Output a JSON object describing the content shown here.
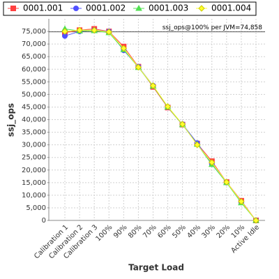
{
  "chart_data": {
    "type": "line",
    "x_label": "Target Load",
    "y_label": "ssj_ops",
    "categories": [
      "Calibration 1",
      "Calibration 2",
      "Calibration 3",
      "100%",
      "90%",
      "80%",
      "70%",
      "60%",
      "50%",
      "40%",
      "30%",
      "20%",
      "10%",
      "Active Idle"
    ],
    "series": [
      {
        "name": "0001.001",
        "color": "#ff4040",
        "marker": "square",
        "values": [
          74500,
          75500,
          76000,
          75000,
          69000,
          61000,
          53000,
          44800,
          38000,
          30500,
          23500,
          15200,
          7800,
          0
        ]
      },
      {
        "name": "0001.002",
        "color": "#5050ff",
        "marker": "circle",
        "values": [
          73200,
          75000,
          75500,
          75000,
          67500,
          61000,
          53500,
          45000,
          38200,
          30700,
          22300,
          15000,
          7200,
          0
        ]
      },
      {
        "name": "0001.003",
        "color": "#50e050",
        "marker": "triangle",
        "values": [
          76000,
          75200,
          75300,
          74500,
          67800,
          60700,
          53300,
          45000,
          38000,
          30200,
          22200,
          15000,
          7000,
          0
        ]
      },
      {
        "name": "0001.004",
        "color": "#ffff30",
        "marker": "diamond",
        "values": [
          75000,
          75500,
          75500,
          74800,
          68300,
          60800,
          53500,
          45200,
          38200,
          30000,
          23000,
          15200,
          7500,
          0
        ]
      }
    ],
    "ylim": [
      0,
      80000
    ],
    "yticks": [
      0,
      {
        "value": 5000,
        "label": "5,000"
      },
      {
        "value": 10000,
        "label": "10,000"
      },
      {
        "value": 15000,
        "label": "15,000"
      },
      {
        "value": 20000,
        "label": "20,000"
      },
      {
        "value": 25000,
        "label": "25,000"
      },
      {
        "value": 30000,
        "label": "30,000"
      },
      {
        "value": 35000,
        "label": "35,000"
      },
      {
        "value": 40000,
        "label": "40,000"
      },
      {
        "value": 45000,
        "label": "45,000"
      },
      {
        "value": 50000,
        "label": "50,000"
      },
      {
        "value": 55000,
        "label": "55,000"
      },
      {
        "value": 60000,
        "label": "60,000"
      },
      {
        "value": 65000,
        "label": "65,000"
      },
      {
        "value": 70000,
        "label": "70,000"
      },
      {
        "value": 75000,
        "label": "75,000"
      }
    ],
    "reference_line": {
      "value": 74858,
      "label": "ssj_ops@100% per JVM=74,858"
    },
    "grid": true,
    "legend": "top"
  }
}
